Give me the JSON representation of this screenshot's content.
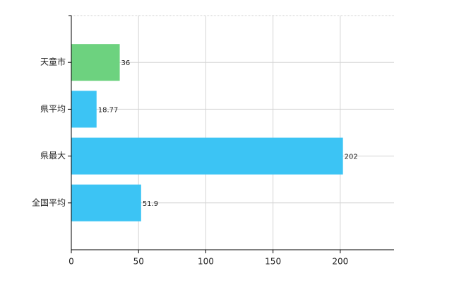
{
  "chart_data": {
    "type": "barh",
    "categories": [
      "天童市",
      "県平均",
      "県最大",
      "全国平均"
    ],
    "values": [
      36,
      18.77,
      202,
      51.9
    ],
    "colors": [
      "#6dd27f",
      "#3cc4f4",
      "#3cc4f4",
      "#3cc4f4"
    ],
    "xlim": [
      0,
      240
    ],
    "xticks": [
      0,
      50,
      100,
      150,
      200
    ],
    "grid": true
  }
}
